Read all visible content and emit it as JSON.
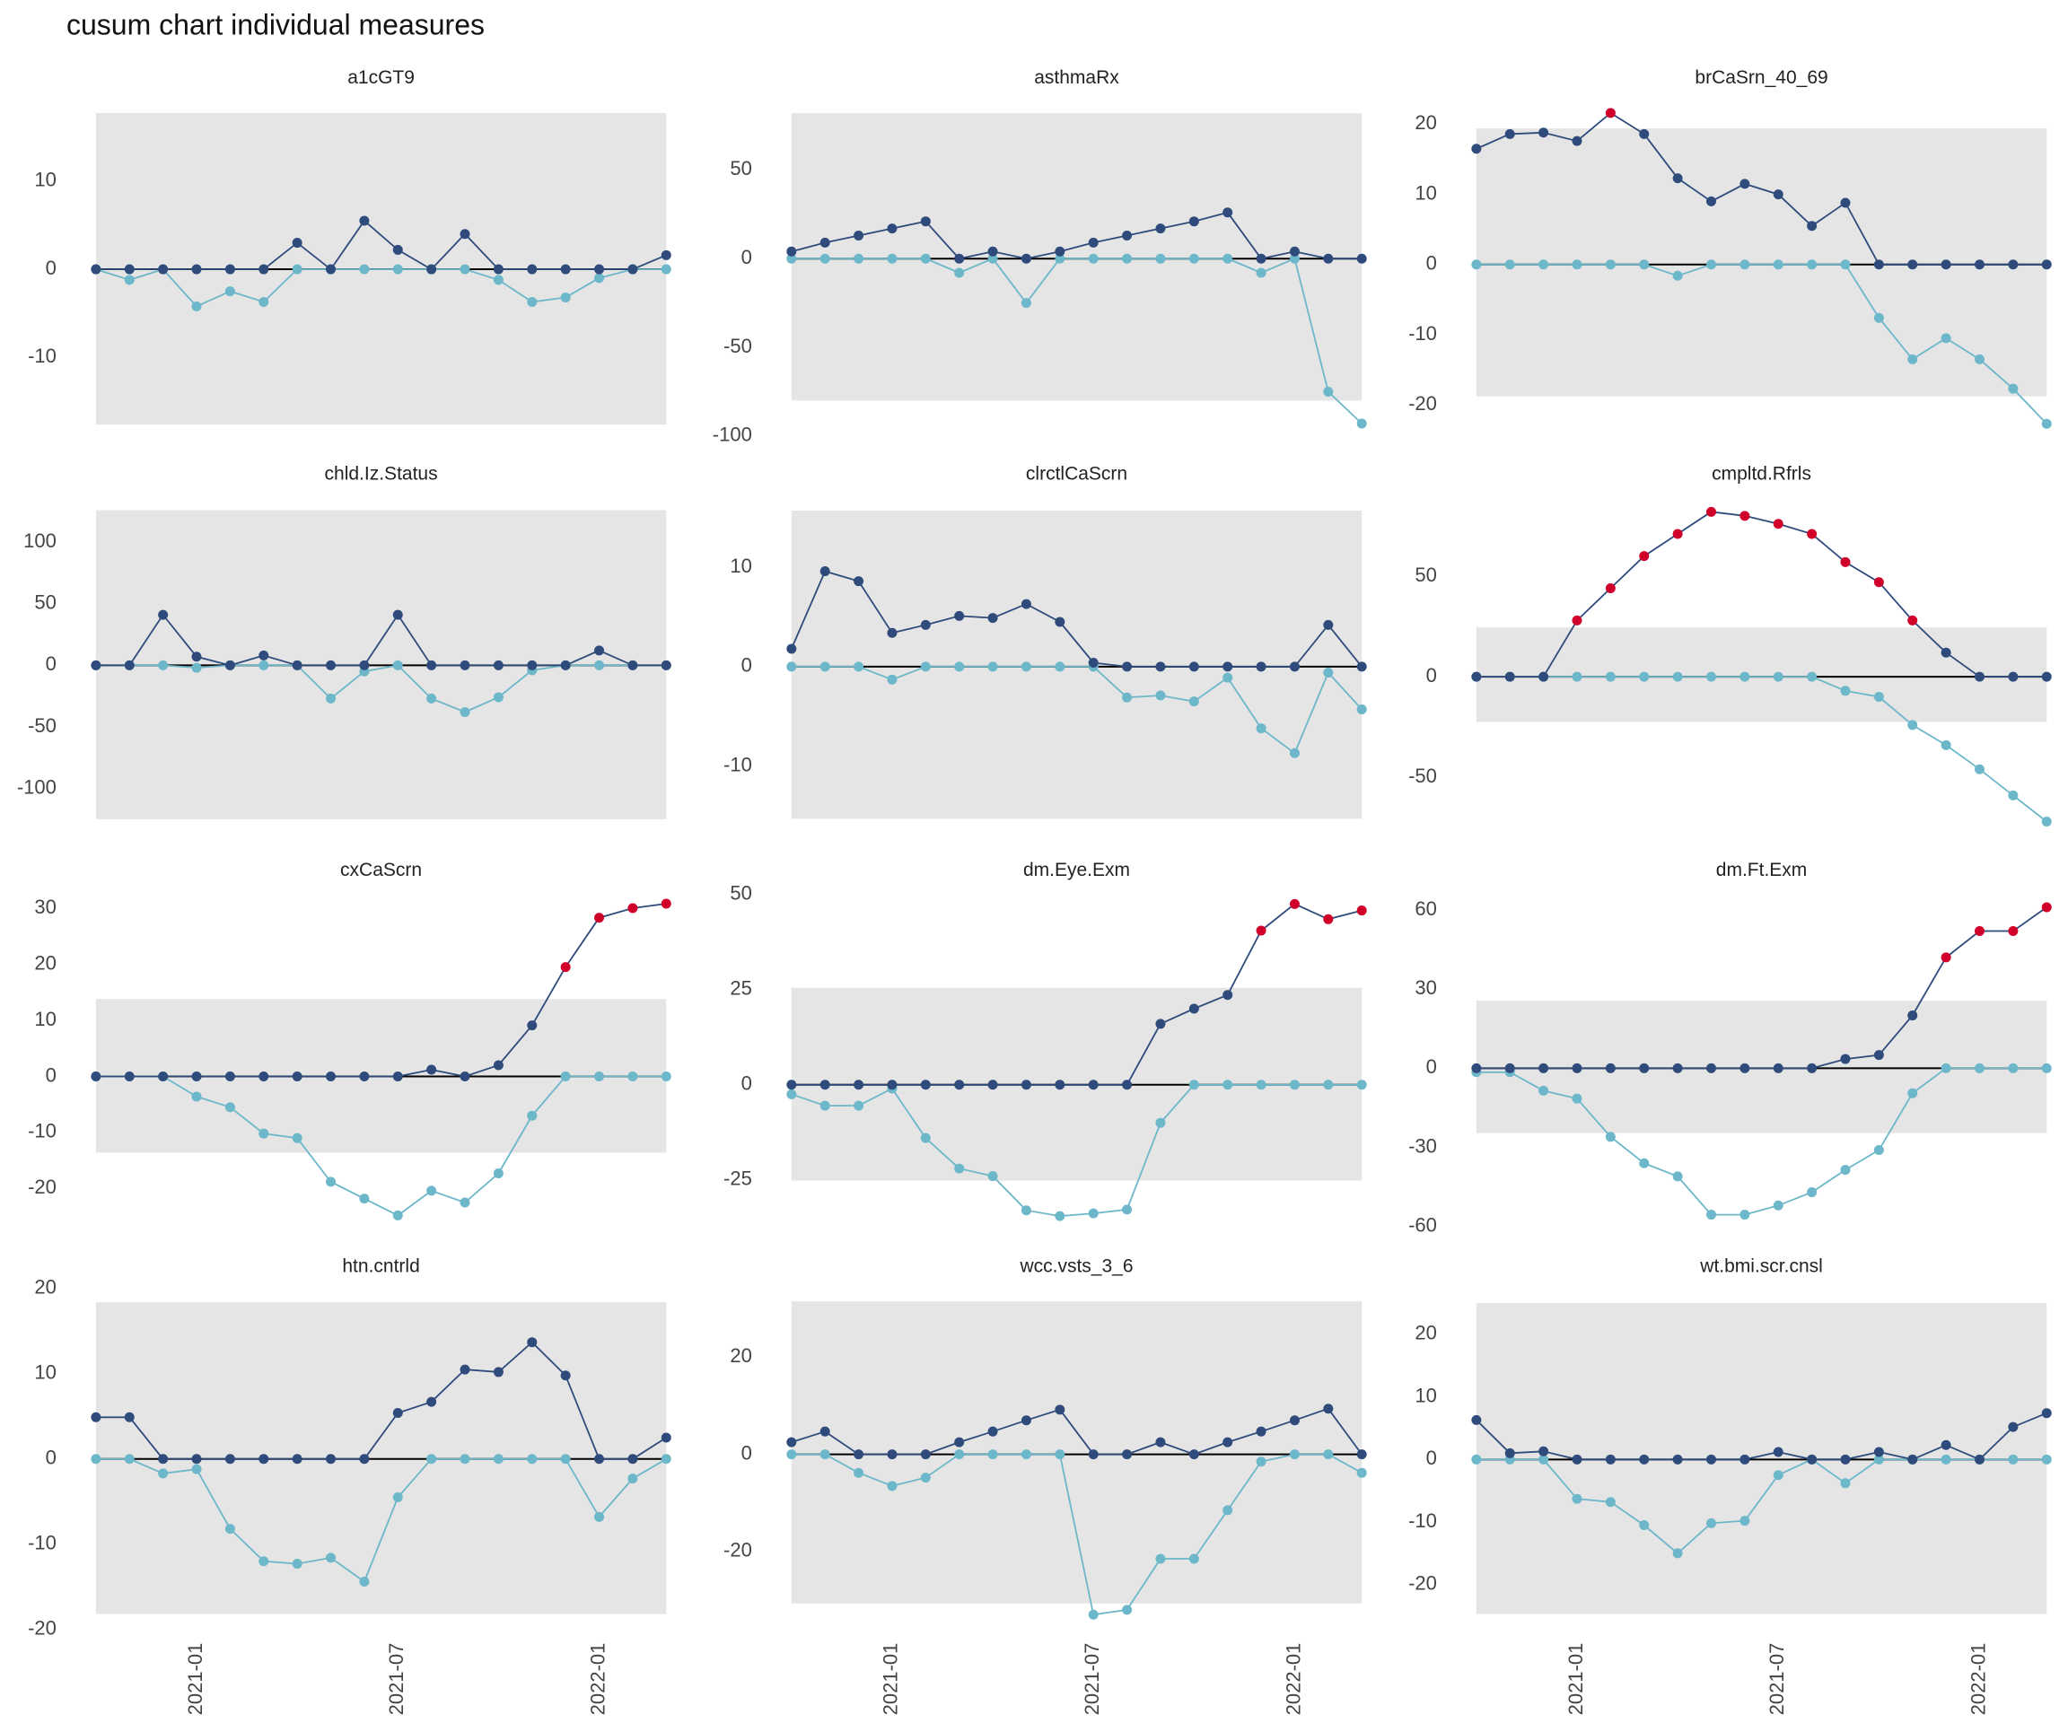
{
  "title": "cusum chart  individual measures",
  "chart_data": [
    {
      "type": "line",
      "title": "a1cGT9",
      "x": [
        "2020-10",
        "2020-11",
        "2020-12",
        "2021-01",
        "2021-02",
        "2021-03",
        "2021-04",
        "2021-05",
        "2021-06",
        "2021-07",
        "2021-08",
        "2021-09",
        "2021-10",
        "2021-11",
        "2021-12",
        "2022-01",
        "2022-02",
        "2022-03"
      ],
      "ylim": [
        -19.5,
        19.7
      ],
      "yticks": [
        -10,
        0,
        10
      ],
      "band": [
        -17.6,
        17.7
      ],
      "band_color": "#e5e5e5",
      "alert_color": "#d1002a",
      "series": [
        {
          "color": "#6cb7c9",
          "values": [
            0,
            -1.2,
            0,
            -4.2,
            -2.5,
            -3.7,
            0,
            0,
            0,
            0,
            0,
            0,
            -1.2,
            -3.7,
            -3.2,
            -1,
            0,
            0
          ]
        },
        {
          "color": "#2f4b7c",
          "values": [
            0,
            0,
            0,
            0,
            0,
            0,
            3,
            0,
            5.5,
            2.2,
            0,
            4,
            0,
            0,
            0,
            0,
            0,
            1.6
          ]
        }
      ]
    },
    {
      "type": "line",
      "title": "asthmaRx",
      "x": [
        "2020-10",
        "2020-11",
        "2020-12",
        "2021-01",
        "2021-02",
        "2021-03",
        "2021-04",
        "2021-05",
        "2021-06",
        "2021-07",
        "2021-08",
        "2021-09",
        "2021-10",
        "2021-11",
        "2021-12",
        "2022-01",
        "2022-02",
        "2022-03"
      ],
      "ylim": [
        -103,
        92
      ],
      "yticks": [
        -100,
        -50,
        0,
        50
      ],
      "band": [
        -80,
        82
      ],
      "band_color": "#e5e5e5",
      "alert_color": "#d1002a",
      "series": [
        {
          "color": "#6cb7c9",
          "values": [
            0,
            0,
            0,
            0,
            0,
            -8,
            0,
            -25,
            0,
            0,
            0,
            0,
            0,
            0,
            -8,
            0,
            -75,
            -93
          ]
        },
        {
          "color": "#2f4b7c",
          "values": [
            4,
            9,
            13,
            17,
            21,
            0,
            4,
            0,
            4,
            9,
            13,
            17,
            21,
            26,
            0,
            4,
            0,
            0
          ]
        }
      ]
    },
    {
      "type": "line",
      "title": "brCaSrn_40_69",
      "x": [
        "2020-10",
        "2020-11",
        "2020-12",
        "2021-01",
        "2021-02",
        "2021-03",
        "2021-04",
        "2021-05",
        "2021-06",
        "2021-07",
        "2021-08",
        "2021-09",
        "2021-10",
        "2021-11",
        "2021-12",
        "2022-01",
        "2022-02",
        "2022-03"
      ],
      "ylim": [
        -25.2,
        24.1
      ],
      "yticks": [
        -20,
        -10,
        0,
        10,
        20
      ],
      "band": [
        -18.8,
        19.4
      ],
      "band_color": "#e5e5e5",
      "alert_color": "#d1002a",
      "series": [
        {
          "color": "#6cb7c9",
          "values": [
            0,
            0,
            0,
            0,
            0,
            0,
            -1.6,
            0,
            0,
            0,
            0,
            0,
            -7.6,
            -13.5,
            -10.5,
            -13.5,
            -17.7,
            -22.7
          ]
        },
        {
          "color": "#2f4b7c",
          "values": [
            16.5,
            18.6,
            18.8,
            17.6,
            21.6,
            18.6,
            12.3,
            9,
            11.5,
            10,
            5.5,
            8.8,
            0,
            0,
            0,
            0,
            0,
            0
          ]
        }
      ]
    },
    {
      "type": "line",
      "title": "chld.Iz.Status",
      "x": [
        "2020-10",
        "2020-11",
        "2020-12",
        "2021-01",
        "2021-02",
        "2021-03",
        "2021-04",
        "2021-05",
        "2021-06",
        "2021-07",
        "2021-08",
        "2021-09",
        "2021-10",
        "2021-11",
        "2021-12",
        "2022-01",
        "2022-02",
        "2022-03"
      ],
      "ylim": [
        -140,
        141
      ],
      "yticks": [
        -100,
        -50,
        0,
        50,
        100
      ],
      "band": [
        -125,
        126
      ],
      "band_color": "#e5e5e5",
      "alert_color": "#d1002a",
      "series": [
        {
          "color": "#6cb7c9",
          "values": [
            0,
            0,
            0,
            -2,
            0,
            0,
            0,
            -27,
            -5,
            0,
            -27,
            -38,
            -26,
            -4,
            0,
            0,
            0,
            0
          ]
        },
        {
          "color": "#2f4b7c",
          "values": [
            0,
            0,
            41,
            7,
            0,
            8,
            0,
            0,
            0,
            41,
            0,
            0,
            0,
            0,
            0,
            12,
            0,
            0
          ]
        }
      ]
    },
    {
      "type": "line",
      "title": "clrctlCaScrn",
      "x": [
        "2020-10",
        "2020-11",
        "2020-12",
        "2021-01",
        "2021-02",
        "2021-03",
        "2021-04",
        "2021-05",
        "2021-06",
        "2021-07",
        "2021-08",
        "2021-09",
        "2021-10",
        "2021-11",
        "2021-12",
        "2022-01",
        "2022-02",
        "2022-03"
      ],
      "ylim": [
        -17.2,
        17.6
      ],
      "yticks": [
        -10,
        0,
        10
      ],
      "band": [
        -15.3,
        15.7
      ],
      "band_color": "#e5e5e5",
      "alert_color": "#d1002a",
      "series": [
        {
          "color": "#6cb7c9",
          "values": [
            0,
            0,
            0,
            -1.3,
            0,
            0,
            0,
            0,
            0,
            0,
            -3.1,
            -2.9,
            -3.5,
            -1.1,
            -6.2,
            -8.7,
            -0.6,
            -4.3
          ]
        },
        {
          "color": "#2f4b7c",
          "values": [
            1.8,
            9.6,
            8.6,
            3.4,
            4.2,
            5.1,
            4.9,
            6.3,
            4.5,
            0.4,
            0,
            0,
            0,
            0,
            0,
            0,
            4.2,
            0
          ]
        }
      ]
    },
    {
      "type": "line",
      "title": "cmpltd.Rfrls",
      "x": [
        "2020-10",
        "2020-11",
        "2020-12",
        "2021-01",
        "2021-02",
        "2021-03",
        "2021-04",
        "2021-05",
        "2021-06",
        "2021-07",
        "2021-08",
        "2021-09",
        "2021-10",
        "2021-11",
        "2021-12",
        "2022-01",
        "2022-02",
        "2022-03"
      ],
      "ylim": [
        -80,
        92
      ],
      "yticks": [
        -50,
        0,
        50
      ],
      "band": [
        -22.5,
        24.5
      ],
      "band_color": "#e5e5e5",
      "alert_color": "#d1002a",
      "series": [
        {
          "color": "#6cb7c9",
          "values": [
            0,
            0,
            0,
            0,
            0,
            0,
            0,
            0,
            0,
            0,
            0,
            -7,
            -10,
            -24,
            -34,
            -46,
            -59,
            -72
          ]
        },
        {
          "color": "#2f4b7c",
          "values": [
            0,
            0,
            0,
            28,
            44,
            60,
            71,
            82,
            80,
            76,
            71,
            57,
            47,
            28,
            12,
            0,
            0,
            0
          ]
        }
      ]
    },
    {
      "type": "line",
      "title": "cxCaScrn",
      "x": [
        "2020-10",
        "2020-11",
        "2020-12",
        "2021-01",
        "2021-02",
        "2021-03",
        "2021-04",
        "2021-05",
        "2021-06",
        "2021-07",
        "2021-08",
        "2021-09",
        "2021-10",
        "2021-11",
        "2021-12",
        "2022-01",
        "2022-02",
        "2022-03"
      ],
      "ylim": [
        -28.1,
        33.6
      ],
      "yticks": [
        -20,
        -10,
        0,
        10,
        20,
        30
      ],
      "band": [
        -13.6,
        13.8
      ],
      "band_color": "#e5e5e5",
      "alert_color": "#d1002a",
      "series": [
        {
          "color": "#6cb7c9",
          "values": [
            0,
            0,
            0,
            -3.6,
            -5.5,
            -10.2,
            -11,
            -18.8,
            -21.8,
            -24.8,
            -20.4,
            -22.5,
            -17.3,
            -7,
            0,
            0,
            0,
            0
          ]
        },
        {
          "color": "#2f4b7c",
          "values": [
            0,
            0,
            0,
            0,
            0,
            0,
            0,
            0,
            0,
            0,
            1.2,
            0,
            2,
            9.1,
            19.5,
            28.3,
            30,
            30.8
          ]
        }
      ]
    },
    {
      "type": "line",
      "title": "dm.Eye.Exm",
      "x": [
        "2020-10",
        "2020-11",
        "2020-12",
        "2021-01",
        "2021-02",
        "2021-03",
        "2021-04",
        "2021-05",
        "2021-06",
        "2021-07",
        "2021-08",
        "2021-09",
        "2021-10",
        "2021-11",
        "2021-12",
        "2022-01",
        "2022-02",
        "2022-03"
      ],
      "ylim": [
        -39.2,
        51.7
      ],
      "yticks": [
        -25,
        0,
        25,
        50
      ],
      "band": [
        -25.2,
        25.5
      ],
      "band_color": "#e5e5e5",
      "alert_color": "#d1002a",
      "series": [
        {
          "color": "#6cb7c9",
          "values": [
            -2.5,
            -5.5,
            -5.5,
            -1,
            -14,
            -22,
            -24,
            -33,
            -34.5,
            -33.8,
            -32.8,
            -10,
            0,
            0,
            0,
            0,
            0,
            0
          ]
        },
        {
          "color": "#2f4b7c",
          "values": [
            0,
            0,
            0,
            0,
            0,
            0,
            0,
            0,
            0,
            0,
            0,
            16,
            20,
            23.6,
            40.5,
            47.5,
            43.5,
            45.8
          ]
        }
      ]
    },
    {
      "type": "line",
      "title": "dm.Ft.Exm",
      "x": [
        "2020-10",
        "2020-11",
        "2020-12",
        "2021-01",
        "2021-02",
        "2021-03",
        "2021-04",
        "2021-05",
        "2021-06",
        "2021-07",
        "2021-08",
        "2021-09",
        "2021-10",
        "2021-11",
        "2021-12",
        "2022-01",
        "2022-02",
        "2022-03"
      ],
      "ylim": [
        -62.8,
        68.3
      ],
      "yticks": [
        -60,
        -30,
        0,
        30,
        60
      ],
      "band": [
        -24.6,
        25.6
      ],
      "band_color": "#e5e5e5",
      "alert_color": "#d1002a",
      "series": [
        {
          "color": "#6cb7c9",
          "values": [
            -1.5,
            -1.5,
            -8.5,
            -11.5,
            -26,
            -36,
            -41,
            -55.5,
            -55.5,
            -52,
            -47,
            -38.5,
            -31,
            -9.5,
            0,
            0,
            0,
            0
          ]
        },
        {
          "color": "#2f4b7c",
          "values": [
            0,
            0,
            0,
            0,
            0,
            0,
            0,
            0,
            0,
            0,
            0,
            3.5,
            5,
            20,
            42,
            52,
            52,
            61
          ]
        }
      ]
    },
    {
      "type": "line",
      "title": "htn.cntrld",
      "x": [
        "2020-10",
        "2020-11",
        "2020-12",
        "2021-01",
        "2021-02",
        "2021-03",
        "2021-04",
        "2021-05",
        "2021-06",
        "2021-07",
        "2021-08",
        "2021-09",
        "2021-10",
        "2021-11",
        "2021-12",
        "2022-01",
        "2022-02",
        "2022-03"
      ],
      "xticks": [
        "2021-01",
        "2021-07",
        "2022-01"
      ],
      "ylim": [
        -20.1,
        20.5
      ],
      "yticks": [
        -20,
        -10,
        0,
        10,
        20
      ],
      "band": [
        -18.2,
        18.4
      ],
      "band_color": "#e5e5e5",
      "alert_color": "#d1002a",
      "series": [
        {
          "color": "#6cb7c9",
          "values": [
            0,
            0,
            -1.7,
            -1.2,
            -8.2,
            -12,
            -12.3,
            -11.6,
            -14.4,
            -4.5,
            0,
            0,
            0,
            0,
            0,
            -6.8,
            -2.3,
            0
          ]
        },
        {
          "color": "#2f4b7c",
          "values": [
            4.9,
            4.9,
            0,
            0,
            0,
            0,
            0,
            0,
            0,
            5.4,
            6.7,
            10.5,
            10.2,
            13.7,
            9.8,
            0,
            0,
            2.5
          ]
        }
      ]
    },
    {
      "type": "line",
      "title": "wcc.vsts_3_6",
      "x": [
        "2020-10",
        "2020-11",
        "2020-12",
        "2021-01",
        "2021-02",
        "2021-03",
        "2021-04",
        "2021-05",
        "2021-06",
        "2021-07",
        "2021-08",
        "2021-09",
        "2021-10",
        "2021-11",
        "2021-12",
        "2022-01",
        "2022-02",
        "2022-03"
      ],
      "xticks": [
        "2021-01",
        "2021-07",
        "2022-01"
      ],
      "ylim": [
        -36.2,
        35
      ],
      "yticks": [
        -20,
        0,
        20
      ],
      "band": [
        -30.7,
        31.5
      ],
      "band_color": "#e5e5e5",
      "alert_color": "#d1002a",
      "series": [
        {
          "color": "#6cb7c9",
          "values": [
            0,
            0,
            -3.8,
            -6.5,
            -4.8,
            0,
            0,
            0,
            0,
            -33,
            -32,
            -21.5,
            -21.5,
            -11.5,
            -1.5,
            0,
            0,
            -3.8
          ]
        },
        {
          "color": "#2f4b7c",
          "values": [
            2.5,
            4.7,
            0,
            0,
            0,
            2.5,
            4.7,
            7,
            9.2,
            0,
            0,
            2.5,
            0,
            2.5,
            4.7,
            7,
            9.4,
            0
          ]
        }
      ]
    },
    {
      "type": "line",
      "title": "wt.bmi.scr.cnsl",
      "x": [
        "2020-10",
        "2020-11",
        "2020-12",
        "2021-01",
        "2021-02",
        "2021-03",
        "2021-04",
        "2021-05",
        "2021-06",
        "2021-07",
        "2021-08",
        "2021-09",
        "2021-10",
        "2021-11",
        "2021-12",
        "2022-01",
        "2022-02",
        "2022-03"
      ],
      "xticks": [
        "2021-01",
        "2021-07",
        "2022-01"
      ],
      "ylim": [
        -27.3,
        28
      ],
      "yticks": [
        -20,
        -10,
        0,
        10,
        20
      ],
      "band": [
        -24.7,
        25
      ],
      "band_color": "#e5e5e5",
      "alert_color": "#d1002a",
      "series": [
        {
          "color": "#6cb7c9",
          "values": [
            0,
            0,
            0,
            -6.3,
            -6.8,
            -10.5,
            -15,
            -10.2,
            -9.8,
            -2.5,
            0,
            -3.8,
            0,
            0,
            0,
            0,
            0,
            0
          ]
        },
        {
          "color": "#2f4b7c",
          "values": [
            6.3,
            1,
            1.3,
            0,
            0,
            0,
            0,
            0,
            0,
            1.2,
            0,
            0,
            1.2,
            0,
            2.3,
            0,
            5.2,
            7.4
          ]
        }
      ]
    }
  ]
}
